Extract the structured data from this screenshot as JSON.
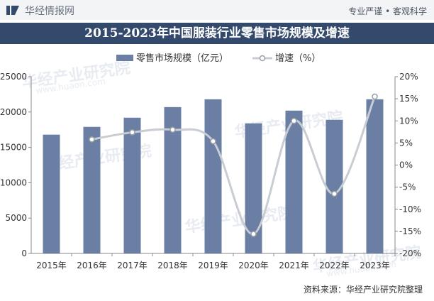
{
  "header": {
    "brand": "华经情报网",
    "tagline": "专业严谨 • 客观科学"
  },
  "title": "2015-2023年中国服装行业零售市场规模及增速",
  "source": "资料来源：华经产业研究院整理",
  "watermark": {
    "text": "华经产业研究院",
    "url": "www.huaon.com"
  },
  "colors": {
    "bar": "#6a7fa3",
    "line": "#c8ccd3",
    "title_bg": "#344a6c"
  },
  "chart_data": {
    "type": "bar+line",
    "categories": [
      "2015年",
      "2016年",
      "2017年",
      "2018年",
      "2019年",
      "2020年",
      "2021年",
      "2022年",
      "2023年"
    ],
    "series": [
      {
        "name": "零售市场规模（亿元）",
        "type": "bar",
        "axis": "left",
        "values": [
          16800,
          17900,
          19200,
          20700,
          21800,
          18400,
          20200,
          18900,
          21800
        ]
      },
      {
        "name": "增速（%）",
        "type": "line",
        "axis": "right",
        "values": [
          null,
          5.8,
          7.4,
          8.0,
          5.4,
          -15.6,
          10.0,
          -6.5,
          15.5
        ]
      }
    ],
    "y_left": {
      "min": 0,
      "max": 25000,
      "ticks": [
        "0",
        "5000",
        "10000",
        "15000",
        "20000",
        "25000"
      ]
    },
    "y_right": {
      "min": -20,
      "max": 20,
      "ticks": [
        "-20%",
        "-15%",
        "-10%",
        "-5%",
        "0%",
        "5%",
        "10%",
        "15%",
        "20%"
      ]
    },
    "legend_position": "top",
    "grid": false
  }
}
